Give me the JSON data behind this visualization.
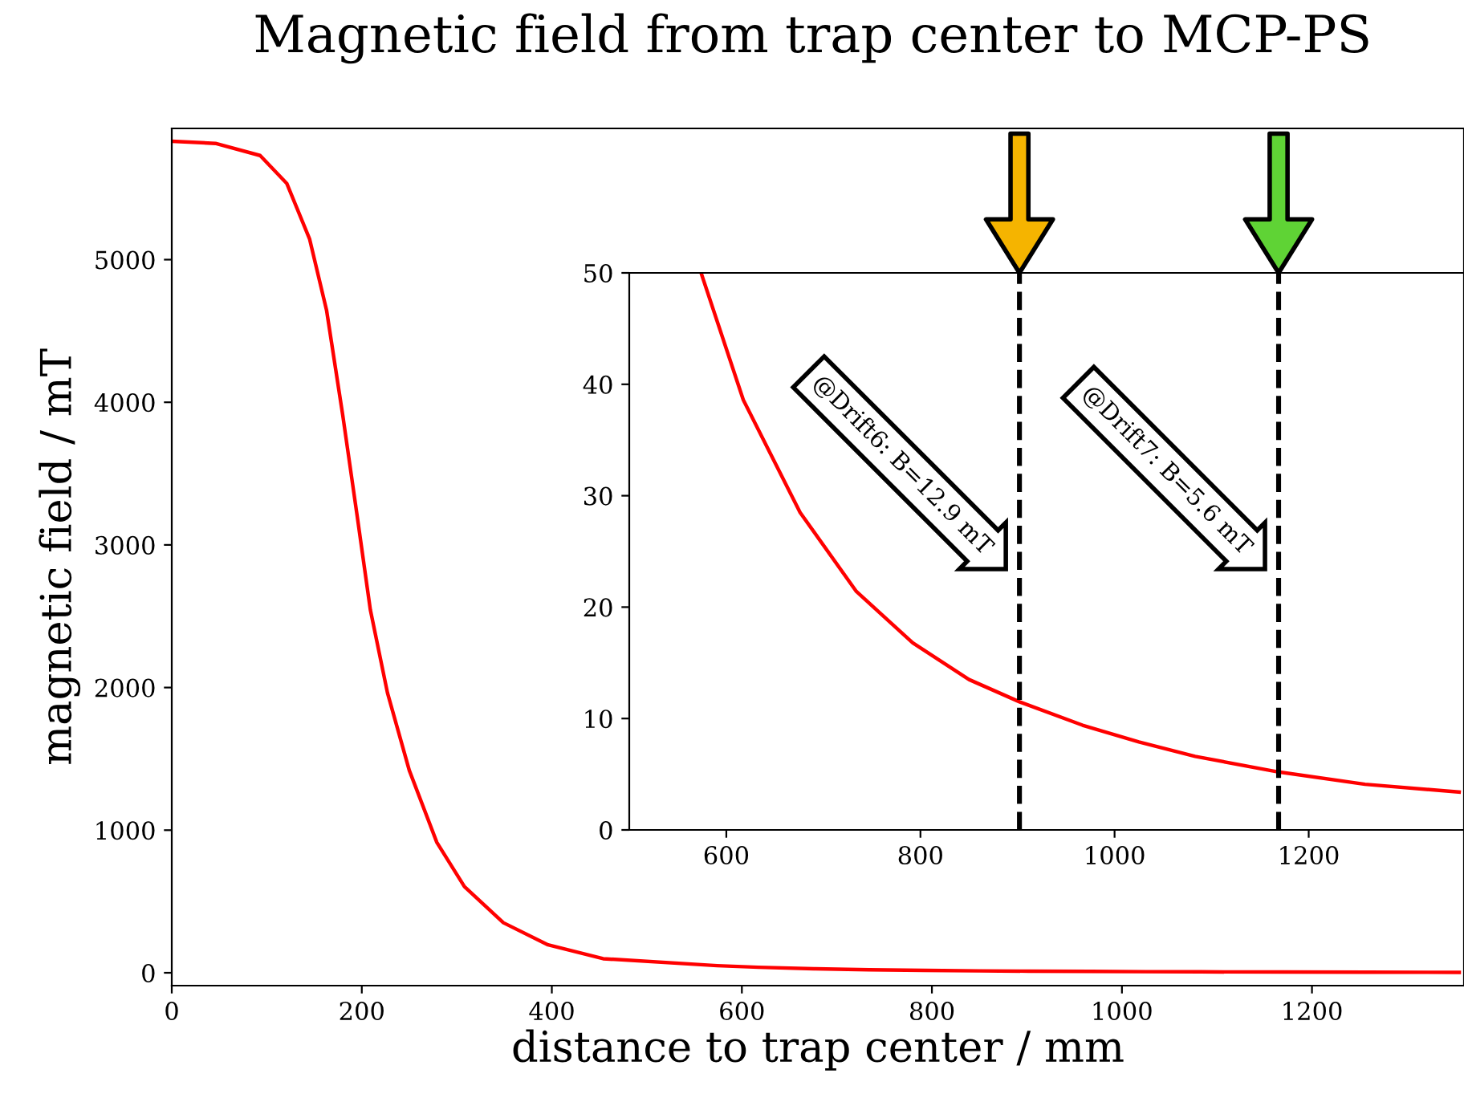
{
  "chart_data": [
    {
      "type": "line",
      "title": "Magnetic field from trap center to MCP-PS",
      "xlabel": "distance to trap center / mm",
      "ylabel": "magnetic field / mT",
      "xlim": [
        0,
        1360
      ],
      "ylim": [
        -90,
        5920
      ],
      "xticks": [
        0,
        200,
        400,
        600,
        800,
        1000,
        1200
      ],
      "yticks": [
        0,
        1000,
        2000,
        3000,
        4000,
        5000
      ],
      "grid": false,
      "legend": false,
      "series": [
        {
          "color": "#ff0000",
          "x": [
            0,
            46,
            93,
            121,
            145,
            163,
            180,
            195,
            209,
            227,
            250,
            279,
            308,
            349,
            396,
            454,
            574,
            617.5,
            676,
            734,
            792,
            850,
            902,
            967,
            1025,
            1083,
            1169,
            1258,
            1355
          ],
          "values": [
            5830,
            5815,
            5730,
            5535,
            5146,
            4642,
            3907,
            3209,
            2545,
            1963,
            1419,
            914,
            604,
            351,
            196,
            99,
            50,
            38.6,
            28.5,
            21.4,
            16.8,
            13.5,
            11.5,
            9.4,
            7.9,
            6.6,
            5.2,
            4.1,
            3.4
          ]
        }
      ]
    },
    {
      "type": "line",
      "xlim": [
        500,
        1360
      ],
      "ylim": [
        0,
        50
      ],
      "xticks": [
        600,
        800,
        1000,
        1200
      ],
      "yticks": [
        0,
        10,
        20,
        30,
        40,
        50
      ],
      "grid": false,
      "legend": false,
      "series": [
        {
          "color": "#ff0000",
          "x": [
            574,
            617.5,
            676,
            734,
            792,
            850,
            902,
            967,
            1025,
            1083,
            1169,
            1258,
            1355
          ],
          "values": [
            50,
            38.6,
            28.5,
            21.4,
            16.8,
            13.5,
            11.5,
            9.4,
            7.9,
            6.6,
            5.2,
            4.1,
            3.4
          ]
        }
      ],
      "ref_lines": [
        {
          "axis": "x",
          "value": 902,
          "color": "#000000",
          "line_style": "dashed"
        },
        {
          "axis": "x",
          "value": 1169,
          "color": "#000000",
          "line_style": "dashed"
        }
      ],
      "annotations": [
        {
          "text": "@Drift6: B=12.9 mT",
          "x": 902,
          "y": 25
        },
        {
          "text": "@Drift7: B=5.6 mT",
          "x": 1169,
          "y": 25
        }
      ]
    }
  ]
}
